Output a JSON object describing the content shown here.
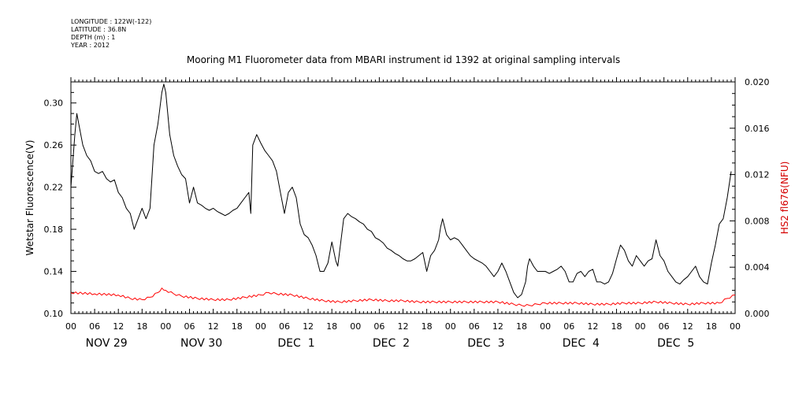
{
  "meta": {
    "longitude": "LONGITUDE : 122W(-122)",
    "latitude": "LATITUDE : 36.8N",
    "depth": "DEPTH (m) : 1",
    "year": "YEAR : 2012"
  },
  "chart_data": {
    "type": "line",
    "title": "Mooring M1 Fluorometer data from MBARI instrument id 1392 at original sampling intervals",
    "xlabel": "",
    "x_unit": "hours since 2012-11-29 00:00",
    "xlim": [
      0,
      168
    ],
    "x_tick_labels": [
      "00",
      "06",
      "12",
      "18",
      "00",
      "06",
      "12",
      "18",
      "00",
      "06",
      "12",
      "18",
      "00",
      "06",
      "12",
      "18",
      "00",
      "06",
      "12",
      "18",
      "00",
      "06",
      "12",
      "18",
      "00",
      "06",
      "12",
      "18",
      "00"
    ],
    "day_labels": [
      "NOV 29",
      "NOV 30",
      "DEC  1",
      "DEC  2",
      "DEC  3",
      "DEC  4",
      "DEC  5"
    ],
    "y_left": {
      "label": "Wetstar Fluorescence(V)",
      "lim": [
        0.1,
        0.32
      ],
      "ticks": [
        "0.10",
        "0.14",
        "0.18",
        "0.22",
        "0.26",
        "0.30"
      ]
    },
    "y_right": {
      "label": "HS2 fl676(NFU)",
      "lim": [
        0.0,
        0.02
      ],
      "ticks": [
        "0.000",
        "0.004",
        "0.008",
        "0.012",
        "0.016",
        "0.020"
      ]
    },
    "series": [
      {
        "name": "Wetstar Fluorescence(V)",
        "axis": "left",
        "color": "#000000",
        "x": [
          0,
          1,
          1.5,
          2,
          3,
          4,
          5,
          6,
          7,
          8,
          9,
          10,
          11,
          12,
          13,
          14,
          15,
          16,
          17,
          18,
          19,
          20,
          21,
          22,
          23,
          23.5,
          24,
          25,
          26,
          27,
          28,
          29,
          30,
          31,
          32,
          33,
          34,
          35,
          36,
          37,
          38,
          39,
          40,
          41,
          42,
          43,
          44,
          45,
          45.5,
          46,
          47,
          48,
          49,
          50,
          51,
          52,
          53,
          54,
          55,
          56,
          57,
          58,
          59,
          60,
          61,
          62,
          63,
          64,
          65,
          66,
          67,
          67.5,
          68,
          69,
          70,
          71,
          72,
          73,
          74,
          75,
          76,
          77,
          78,
          79,
          80,
          81,
          82,
          83,
          84,
          85,
          86,
          87,
          88,
          89,
          90,
          91,
          92,
          93,
          93.5,
          94,
          95,
          96,
          97,
          98,
          99,
          100,
          101,
          102,
          103,
          104,
          105,
          106,
          107,
          108,
          109,
          110,
          111,
          112,
          113,
          114,
          115,
          115.5,
          116,
          117,
          118,
          119,
          120,
          121,
          122,
          123,
          124,
          125,
          126,
          127,
          128,
          129,
          130,
          131,
          132,
          133,
          134,
          135,
          136,
          137,
          138,
          139,
          140,
          141,
          142,
          143,
          144,
          145,
          146,
          147,
          148,
          149,
          150,
          151,
          152,
          153,
          154,
          155,
          156,
          157,
          158,
          159,
          160,
          161,
          162,
          163,
          164,
          165,
          166,
          167
        ],
        "y": [
          0.22,
          0.27,
          0.29,
          0.28,
          0.26,
          0.25,
          0.245,
          0.235,
          0.233,
          0.235,
          0.228,
          0.225,
          0.227,
          0.215,
          0.21,
          0.2,
          0.195,
          0.18,
          0.19,
          0.2,
          0.19,
          0.2,
          0.26,
          0.28,
          0.31,
          0.318,
          0.31,
          0.27,
          0.25,
          0.24,
          0.232,
          0.228,
          0.205,
          0.22,
          0.205,
          0.203,
          0.2,
          0.198,
          0.2,
          0.197,
          0.195,
          0.193,
          0.195,
          0.198,
          0.2,
          0.205,
          0.21,
          0.215,
          0.195,
          0.26,
          0.27,
          0.262,
          0.255,
          0.25,
          0.245,
          0.235,
          0.215,
          0.195,
          0.215,
          0.22,
          0.21,
          0.185,
          0.175,
          0.172,
          0.165,
          0.155,
          0.14,
          0.14,
          0.148,
          0.168,
          0.15,
          0.145,
          0.16,
          0.19,
          0.195,
          0.192,
          0.19,
          0.187,
          0.185,
          0.18,
          0.178,
          0.172,
          0.17,
          0.167,
          0.162,
          0.16,
          0.157,
          0.155,
          0.152,
          0.15,
          0.15,
          0.152,
          0.155,
          0.158,
          0.14,
          0.155,
          0.16,
          0.17,
          0.182,
          0.19,
          0.175,
          0.17,
          0.172,
          0.17,
          0.165,
          0.16,
          0.155,
          0.152,
          0.15,
          0.148,
          0.145,
          0.14,
          0.135,
          0.14,
          0.148,
          0.14,
          0.13,
          0.12,
          0.115,
          0.118,
          0.13,
          0.145,
          0.152,
          0.145,
          0.14,
          0.14,
          0.14,
          0.138,
          0.14,
          0.142,
          0.145,
          0.14,
          0.13,
          0.13,
          0.138,
          0.14,
          0.135,
          0.14,
          0.142,
          0.13,
          0.13,
          0.128,
          0.13,
          0.138,
          0.152,
          0.165,
          0.16,
          0.15,
          0.145,
          0.155,
          0.15,
          0.145,
          0.15,
          0.152,
          0.17,
          0.155,
          0.15,
          0.14,
          0.135,
          0.13,
          0.128,
          0.132,
          0.135,
          0.14,
          0.145,
          0.135,
          0.13,
          0.128,
          0.148,
          0.165,
          0.185,
          0.19,
          0.21,
          0.235
        ]
      },
      {
        "name": "HS2 fl676(NFU)",
        "axis": "right",
        "color": "#ff0000",
        "x": [
          0,
          6,
          12,
          15,
          18,
          20,
          22,
          23,
          24,
          26,
          28,
          32,
          36,
          40,
          44,
          48,
          50,
          52,
          56,
          60,
          64,
          68,
          72,
          76,
          80,
          84,
          88,
          92,
          96,
          100,
          104,
          108,
          112,
          114,
          116,
          118,
          120,
          124,
          128,
          132,
          136,
          140,
          144,
          148,
          152,
          156,
          160,
          164,
          166,
          168
        ],
        "y": [
          0.0018,
          0.0017,
          0.0016,
          0.0013,
          0.0012,
          0.0014,
          0.0018,
          0.0022,
          0.002,
          0.0017,
          0.0015,
          0.0013,
          0.0012,
          0.0012,
          0.0014,
          0.0016,
          0.0018,
          0.0017,
          0.0016,
          0.0013,
          0.0011,
          0.001,
          0.0011,
          0.0012,
          0.0011,
          0.0011,
          0.001,
          0.001,
          0.001,
          0.001,
          0.001,
          0.001,
          0.0008,
          0.0007,
          0.0007,
          0.0008,
          0.0009,
          0.0009,
          0.0009,
          0.0008,
          0.0008,
          0.0009,
          0.0009,
          0.001,
          0.0009,
          0.0008,
          0.0009,
          0.0009,
          0.0013,
          0.0016
        ]
      }
    ]
  }
}
